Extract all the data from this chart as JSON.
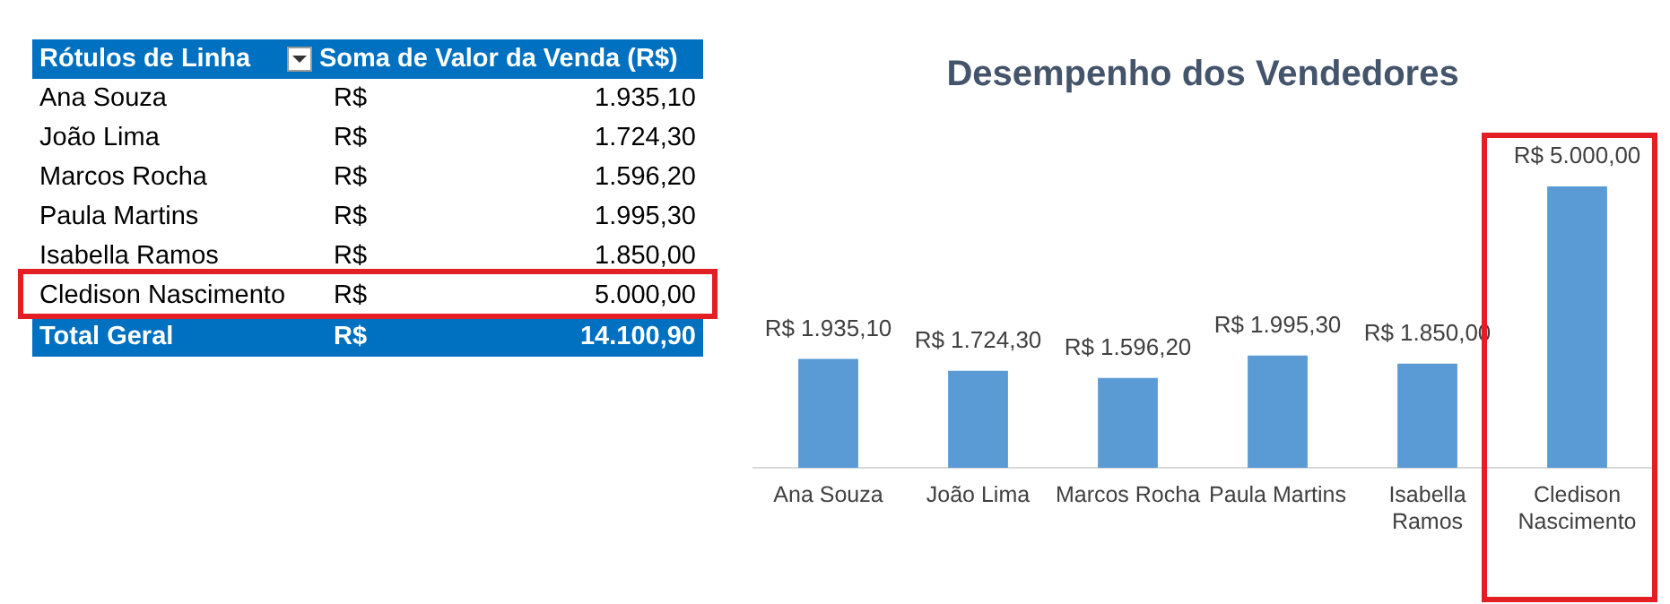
{
  "chart_data": [
    {
      "type": "other",
      "xlabel": "Rótulos de Linha",
      "ylabel": "Soma de Valor da Venda (R$)",
      "categories": [
        "Ana Souza",
        "João Lima",
        "Marcos Rocha",
        "Paula Martins",
        "Isabella Ramos",
        "Cledison Nascimento",
        "Total Geral"
      ],
      "value_labels": [
        "R$ 1.935,10",
        "R$ 1.724,30",
        "R$ 1.596,20",
        "R$ 1.995,30",
        "R$ 1.850,00",
        "R$ 5.000,00",
        "R$ 14.100,90"
      ]
    },
    {
      "type": "bar",
      "title": "Desempenho dos Vendedores",
      "categories": [
        "Ana Souza",
        "João Lima",
        "Marcos Rocha",
        "Paula Martins",
        "Isabella Ramos",
        "Cledison Nascimento"
      ],
      "values": [
        1935.1,
        1724.3,
        1596.2,
        1995.3,
        1850,
        5000
      ],
      "color": "#5b9bd5",
      "value_labels": [
        "R$ 1.935,10",
        "R$ 1.724,30",
        "R$ 1.596,20",
        "R$ 1.995,30",
        "R$ 1.850,00",
        "R$ 5.000,00"
      ],
      "tick_labels": "x",
      "grid": false,
      "legend": false
    }
  ]
}
